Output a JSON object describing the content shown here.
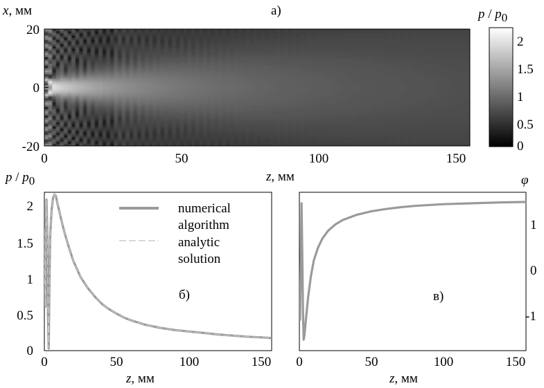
{
  "chart_data": [
    {
      "panel_label": "а)",
      "type": "heatmap",
      "xlabel_var": "z",
      "xlabel_unit": ", мм",
      "ylabel_var": "x",
      "ylabel_unit": ", мм",
      "xlim": [
        0,
        155
      ],
      "ylim": [
        -20,
        20
      ],
      "xticks": [
        "0",
        "50",
        "100",
        "150"
      ],
      "yticks": [
        "20",
        "0",
        "-20"
      ],
      "colorbar": {
        "label_num": "p",
        "label_sep": " / ",
        "label_den_base": "p",
        "label_den_sub": "0",
        "range": [
          0,
          2.15
        ],
        "ticks": [
          "2",
          "1.5",
          "1",
          "0.5",
          "0"
        ],
        "colormap": "gray"
      }
    },
    {
      "panel_label": "б)",
      "type": "line",
      "ylabel_num": "p",
      "ylabel_sep": " / ",
      "ylabel_den_base": "p",
      "ylabel_den_sub": "0",
      "xlabel_var": "z",
      "xlabel_unit": ", мм",
      "xlim": [
        0,
        157
      ],
      "ylim": [
        0,
        2.15
      ],
      "xticks": [
        "0",
        "50",
        "100",
        "150"
      ],
      "yticks": [
        "2",
        "1.5",
        "1",
        "0.5",
        "0"
      ],
      "legend": [
        "numerical",
        "algorithm",
        "analytic",
        "solution"
      ],
      "legend_placement": "top-right",
      "series": [
        {
          "name": "numerical algorithm",
          "x": [
            0,
            0.3,
            0.7,
            1.0,
            1.5,
            2.0,
            2.5,
            3.0,
            3.5,
            4.0,
            5,
            6,
            7,
            8,
            9,
            10,
            12,
            14,
            17,
            20,
            25,
            30,
            35,
            40,
            45,
            50,
            55,
            60,
            70,
            80,
            90,
            100,
            110,
            120,
            130,
            140,
            150,
            157
          ],
          "y": [
            1.65,
            0.95,
            0.6,
            1.3,
            2.05,
            1.6,
            0.5,
            0.03,
            0.9,
            1.55,
            1.9,
            2.07,
            2.12,
            2.1,
            2.0,
            1.92,
            1.75,
            1.6,
            1.4,
            1.22,
            1.0,
            0.85,
            0.73,
            0.63,
            0.56,
            0.5,
            0.45,
            0.41,
            0.35,
            0.31,
            0.28,
            0.26,
            0.24,
            0.22,
            0.205,
            0.19,
            0.18,
            0.17
          ]
        },
        {
          "name": "analytic solution",
          "x": [
            0,
            0.3,
            0.7,
            1.0,
            1.5,
            2.0,
            2.5,
            3.0,
            3.5,
            4.0,
            5,
            6,
            7,
            8,
            9,
            10,
            12,
            14,
            17,
            20,
            25,
            30,
            35,
            40,
            45,
            50,
            55,
            60,
            70,
            80,
            90,
            100,
            110,
            120,
            130,
            140,
            150,
            157
          ],
          "y": [
            1.65,
            0.95,
            0.6,
            1.3,
            2.05,
            1.6,
            0.5,
            0.03,
            0.9,
            1.55,
            1.9,
            2.07,
            2.12,
            2.1,
            2.0,
            1.92,
            1.75,
            1.6,
            1.4,
            1.22,
            1.0,
            0.85,
            0.73,
            0.63,
            0.56,
            0.5,
            0.45,
            0.41,
            0.35,
            0.31,
            0.28,
            0.26,
            0.24,
            0.22,
            0.205,
            0.19,
            0.18,
            0.17
          ]
        }
      ]
    },
    {
      "panel_label": "в)",
      "type": "line",
      "ylabel": "φ",
      "xlabel_var": "z",
      "xlabel_unit": ", мм",
      "xlim": [
        0,
        157
      ],
      "ylim": [
        -1.8,
        1.8
      ],
      "xticks": [
        "0",
        "50",
        "100",
        "150"
      ],
      "yticks": [
        "1",
        "0",
        "-1"
      ],
      "series": [
        {
          "x": [
            0,
            0.5,
            1.0,
            1.5,
            2.0,
            2.5,
            3.0,
            3.5,
            4.5,
            6,
            8,
            10,
            13,
            16,
            20,
            25,
            30,
            40,
            50,
            60,
            70,
            80,
            100,
            120,
            140,
            157
          ],
          "y": [
            -0.3,
            -1.1,
            0.3,
            1.55,
            0.4,
            -0.9,
            -1.55,
            -1.45,
            -1.1,
            -0.6,
            -0.1,
            0.25,
            0.55,
            0.75,
            0.93,
            1.07,
            1.17,
            1.29,
            1.37,
            1.42,
            1.46,
            1.49,
            1.53,
            1.55,
            1.57,
            1.58
          ]
        }
      ]
    }
  ]
}
